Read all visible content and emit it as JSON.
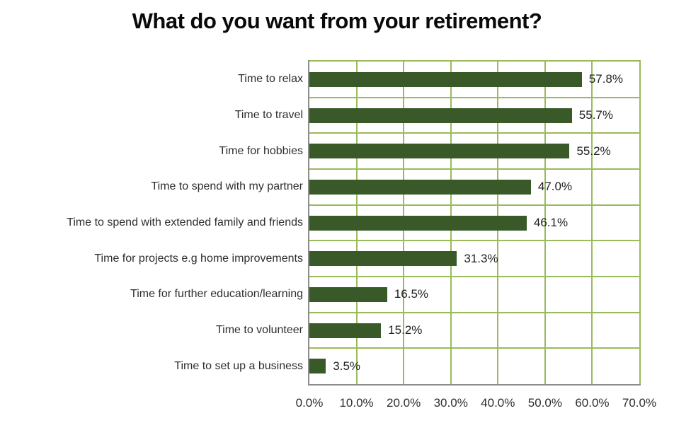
{
  "title": "What do you want from your retirement?",
  "colors": {
    "bar": "#395928",
    "gridline": "#9ABB59",
    "axis": "#8C8C8C",
    "title_text": "#0a0a0a",
    "label_text": "#2e2e2e"
  },
  "chart_data": {
    "type": "bar",
    "orientation": "horizontal",
    "title": "What do you want from your retirement?",
    "categories": [
      "Time to relax",
      "Time to travel",
      "Time for hobbies",
      "Time to spend with my partner",
      "Time to spend with extended family and friends",
      "Time for projects e.g home improvements",
      "Time for further education/learning",
      "Time to volunteer",
      "Time to set up a business"
    ],
    "values": [
      57.8,
      55.7,
      55.2,
      47.0,
      46.1,
      31.3,
      16.5,
      15.2,
      3.5
    ],
    "value_labels": [
      "57.8%",
      "55.7%",
      "55.2%",
      "47.0%",
      "46.1%",
      "31.3%",
      "16.5%",
      "15.2%",
      "3.5%"
    ],
    "x_tick_labels": [
      "0.0%",
      "10.0%",
      "20.0%",
      "30.0%",
      "40.0%",
      "50.0%",
      "60.0%",
      "70.0%"
    ],
    "xlim": [
      0,
      70
    ],
    "grid": true,
    "legend": false,
    "data_label_position": "outside-end"
  }
}
